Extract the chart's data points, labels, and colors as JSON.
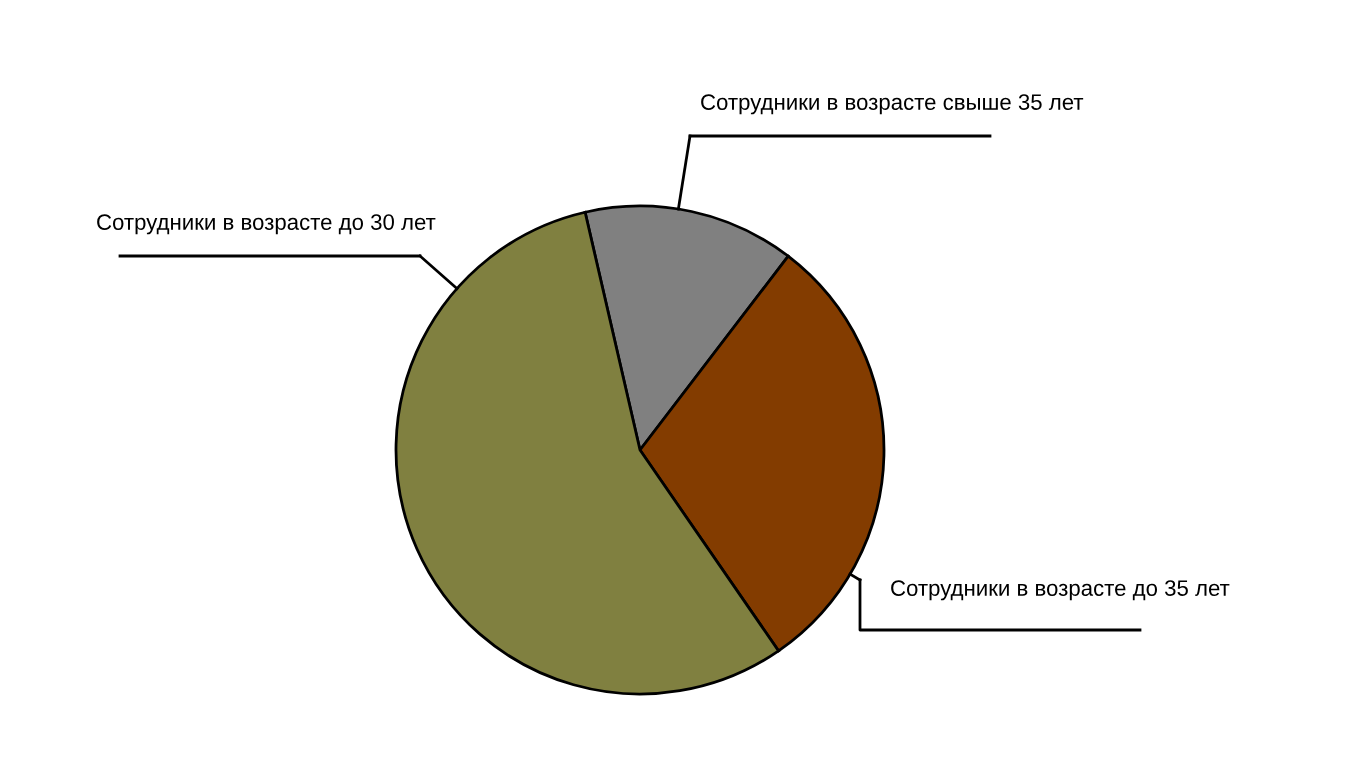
{
  "chart_data": {
    "type": "pie",
    "categories": [
      "Сотрудники в возрасте свыше 35 лет",
      "Сотрудники в возрасте до 35 лет",
      "Сотрудники в возрасте до 30 лет"
    ],
    "values": [
      14,
      30,
      56
    ],
    "colors": [
      "#808080",
      "#833c00",
      "#808040"
    ]
  }
}
